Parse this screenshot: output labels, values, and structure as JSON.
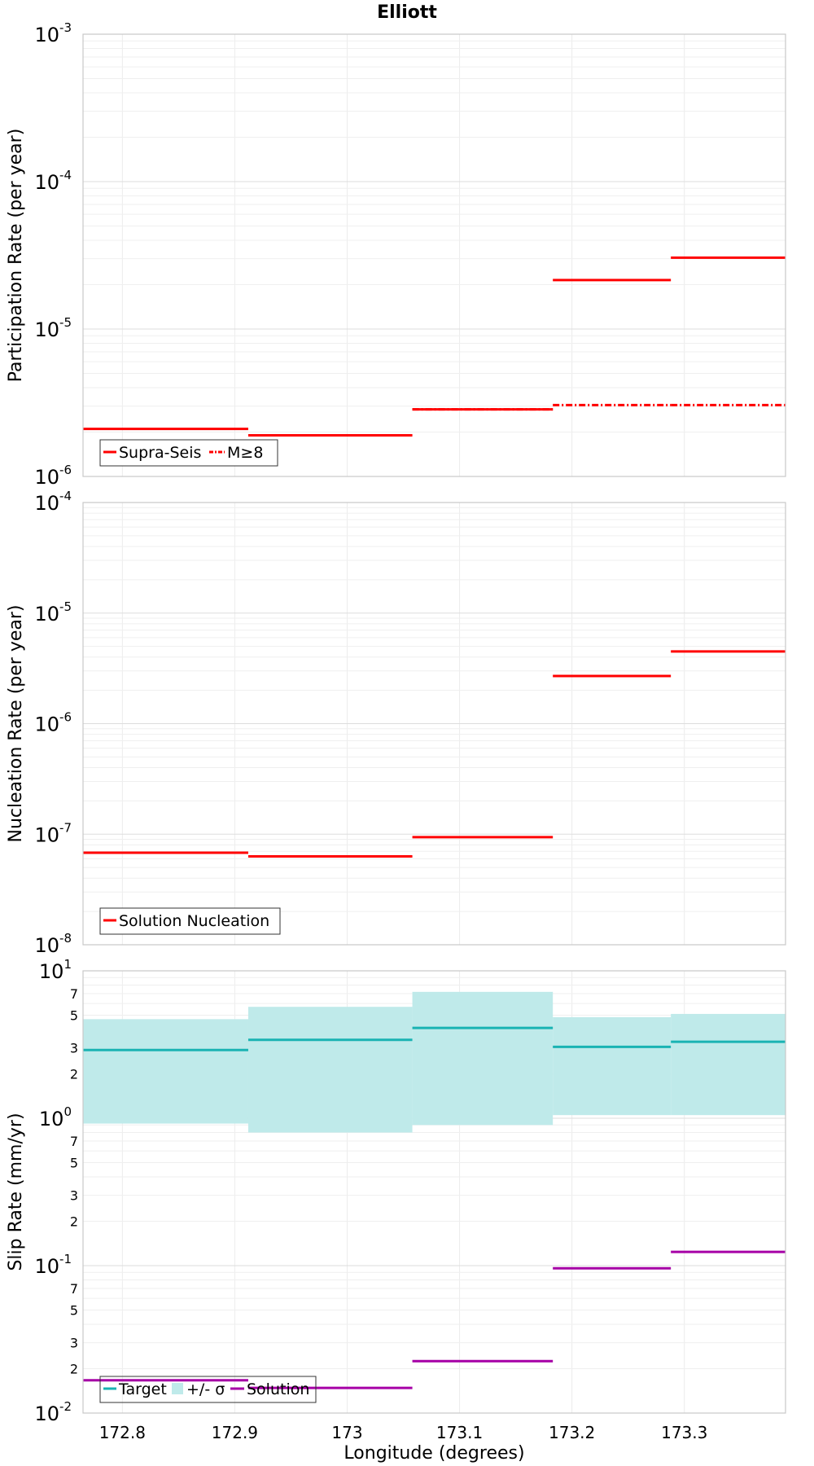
{
  "title": "Elliott",
  "chart_data": [
    {
      "type": "line",
      "ylabel": "Participation Rate (per year)",
      "yscale": "log",
      "ylim": [
        1e-06,
        0.001
      ],
      "xlim": [
        172.765,
        173.39
      ],
      "grid": true,
      "legend": "bottom-left",
      "series": [
        {
          "name": "Supra-Seis",
          "color": "#ff0000",
          "style": "solid",
          "steps": [
            {
              "x0": 172.765,
              "x1": 172.912,
              "y": 2.1e-06
            },
            {
              "x0": 172.912,
              "x1": 173.058,
              "y": 1.9e-06
            },
            {
              "x0": 173.058,
              "x1": 173.183,
              "y": 2.85e-06
            },
            {
              "x0": 173.183,
              "x1": 173.288,
              "y": 2.15e-05
            },
            {
              "x0": 173.288,
              "x1": 173.39,
              "y": 3.05e-05
            }
          ]
        },
        {
          "name": "M≥8",
          "color": "#ff0000",
          "style": "dashdot",
          "steps": [
            {
              "x0": 173.058,
              "x1": 173.183,
              "y": 2.85e-06
            },
            {
              "x0": 173.183,
              "x1": 173.288,
              "y": 3.05e-06
            },
            {
              "x0": 173.288,
              "x1": 173.39,
              "y": 3.05e-06
            }
          ]
        }
      ]
    },
    {
      "type": "line",
      "ylabel": "Nucleation Rate (per year)",
      "yscale": "log",
      "ylim": [
        1e-08,
        0.0001
      ],
      "xlim": [
        172.765,
        173.39
      ],
      "grid": true,
      "legend": "bottom-left",
      "series": [
        {
          "name": "Solution Nucleation",
          "color": "#ff0000",
          "style": "solid",
          "steps": [
            {
              "x0": 172.765,
              "x1": 172.912,
              "y": 6.8e-08
            },
            {
              "x0": 172.912,
              "x1": 173.058,
              "y": 6.3e-08
            },
            {
              "x0": 173.058,
              "x1": 173.183,
              "y": 9.4e-08
            },
            {
              "x0": 173.183,
              "x1": 173.288,
              "y": 2.7e-06
            },
            {
              "x0": 173.288,
              "x1": 173.39,
              "y": 4.5e-06
            }
          ]
        }
      ]
    },
    {
      "type": "line",
      "ylabel": "Slip Rate (mm/yr)",
      "xlabel": "Longitude (degrees)",
      "yscale": "log",
      "ylim": [
        0.01,
        10
      ],
      "xlim": [
        172.765,
        173.39
      ],
      "xticks": [
        "172.8",
        "172.9",
        "173",
        "173.1",
        "173.2",
        "173.3"
      ],
      "grid": true,
      "legend": "bottom-left",
      "band": {
        "name": "+/- σ",
        "color": "#bfeaea",
        "steps": [
          {
            "x0": 172.765,
            "x1": 172.912,
            "lo": 0.92,
            "hi": 4.7
          },
          {
            "x0": 172.912,
            "x1": 173.058,
            "lo": 0.8,
            "hi": 5.7
          },
          {
            "x0": 173.058,
            "x1": 173.183,
            "lo": 0.9,
            "hi": 7.2
          },
          {
            "x0": 173.183,
            "x1": 173.288,
            "lo": 1.05,
            "hi": 4.85
          },
          {
            "x0": 173.288,
            "x1": 173.39,
            "lo": 1.05,
            "hi": 5.1
          }
        ]
      },
      "series": [
        {
          "name": "Target",
          "color": "#1ab3b3",
          "style": "solid",
          "steps": [
            {
              "x0": 172.765,
              "x1": 172.912,
              "y": 2.9
            },
            {
              "x0": 172.912,
              "x1": 173.058,
              "y": 3.4
            },
            {
              "x0": 173.058,
              "x1": 173.183,
              "y": 4.1
            },
            {
              "x0": 173.183,
              "x1": 173.288,
              "y": 3.05
            },
            {
              "x0": 173.288,
              "x1": 173.39,
              "y": 3.3
            }
          ]
        },
        {
          "name": "Solution",
          "color": "#a600a6",
          "style": "solid",
          "steps": [
            {
              "x0": 172.765,
              "x1": 172.912,
              "y": 0.0167
            },
            {
              "x0": 172.912,
              "x1": 173.058,
              "y": 0.0148
            },
            {
              "x0": 173.058,
              "x1": 173.183,
              "y": 0.0225
            },
            {
              "x0": 173.183,
              "x1": 173.288,
              "y": 0.096
            },
            {
              "x0": 173.288,
              "x1": 173.39,
              "y": 0.124
            }
          ]
        }
      ],
      "legend_entries": [
        "Target",
        "+/- σ",
        "Solution"
      ]
    }
  ]
}
